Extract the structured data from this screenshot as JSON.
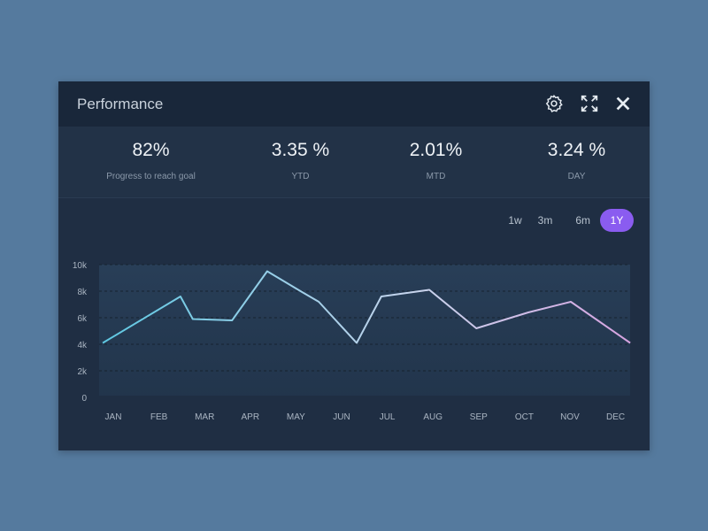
{
  "header": {
    "title": "Performance",
    "icons": [
      "gear-icon",
      "expand-icon",
      "close-icon"
    ]
  },
  "stats": [
    {
      "value": "82%",
      "label": "Progress to reach goal"
    },
    {
      "value": "3.35 %",
      "label": "YTD"
    },
    {
      "value": "2.01%",
      "label": "MTD"
    },
    {
      "value": "3.24 %",
      "label": "DAY"
    }
  ],
  "ranges": [
    {
      "label": "1w"
    },
    {
      "label": "3m"
    },
    {
      "label": "6m"
    },
    {
      "label": "1Y",
      "active": true
    }
  ],
  "colors": {
    "background": "#557a9e",
    "panel": "#1f2e43",
    "accent": "#8a5cf0",
    "line_start": "#5ec8e2",
    "line_end": "#d6a3e0"
  },
  "chart_data": {
    "type": "line",
    "categories": [
      "JAN",
      "FEB",
      "MAR",
      "APR",
      "MAY",
      "JUN",
      "JUL",
      "AUG",
      "SEP",
      "OCT",
      "NOV",
      "DEC"
    ],
    "y_ticks": [
      "0",
      "2k",
      "4k",
      "6k",
      "8k",
      "10k"
    ],
    "ylim": [
      0,
      10000
    ],
    "grid": true,
    "points": [
      {
        "x": -0.23,
        "y": 4100
      },
      {
        "x": 1.47,
        "y": 7600
      },
      {
        "x": 1.74,
        "y": 5900
      },
      {
        "x": 2.6,
        "y": 5800
      },
      {
        "x": 3.37,
        "y": 9500
      },
      {
        "x": 4.1,
        "y": 8000
      },
      {
        "x": 4.5,
        "y": 7200
      },
      {
        "x": 5.33,
        "y": 4100
      },
      {
        "x": 5.87,
        "y": 7600
      },
      {
        "x": 6.92,
        "y": 8100
      },
      {
        "x": 7.95,
        "y": 5200
      },
      {
        "x": 9.09,
        "y": 6400
      },
      {
        "x": 10.02,
        "y": 7200
      },
      {
        "x": 11.32,
        "y": 4100
      }
    ]
  }
}
